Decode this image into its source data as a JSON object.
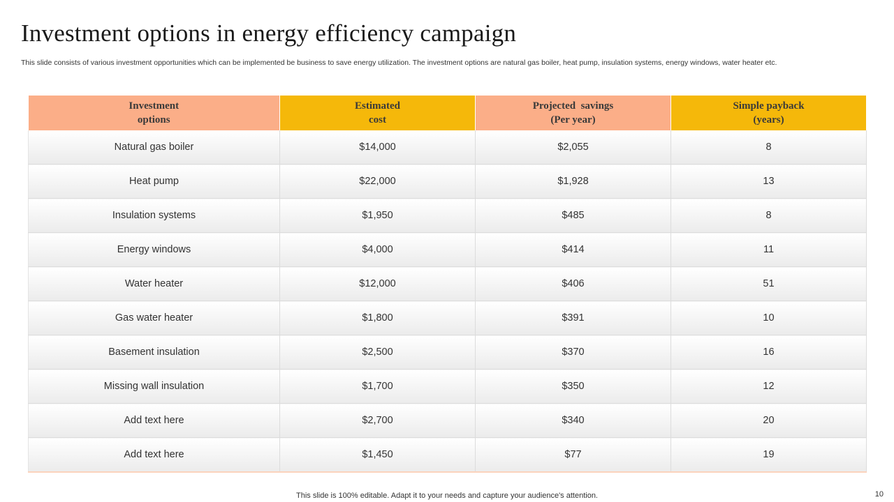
{
  "slide": {
    "title": "Investment options in energy efficiency campaign",
    "subtitle": "This slide consists of various investment opportunities which can be implemented be business to save energy utilization. The investment options are natural gas boiler, heat pump, insulation systems, energy windows, water heater etc."
  },
  "table": {
    "headers": [
      {
        "line1": "Investment",
        "line2": "options"
      },
      {
        "line1": "Estimated",
        "line2": "cost"
      },
      {
        "line1": "Projected  savings",
        "line2": "(Per year)"
      },
      {
        "line1": "Simple payback",
        "line2": "(years)"
      }
    ],
    "rows": [
      [
        "Natural gas boiler",
        "$14,000",
        "$2,055",
        "8"
      ],
      [
        "Heat pump",
        "$22,000",
        "$1,928",
        "13"
      ],
      [
        "Insulation systems",
        "$1,950",
        "$485",
        "8"
      ],
      [
        "Energy windows",
        "$4,000",
        "$414",
        "11"
      ],
      [
        "Water heater",
        "$12,000",
        "$406",
        "51"
      ],
      [
        "Gas water heater",
        "$1,800",
        "$391",
        "10"
      ],
      [
        "Basement insulation",
        "$2,500",
        "$370",
        "16"
      ],
      [
        "Missing wall insulation",
        "$1,700",
        "$350",
        "12"
      ],
      [
        "Add text here",
        "$2,700",
        "$340",
        "20"
      ],
      [
        "Add text here",
        "$1,450",
        "$77",
        "19"
      ]
    ]
  },
  "footer": {
    "note": "This slide is 100% editable. Adapt it to your needs and capture your audience's attention.",
    "page_number": "10"
  },
  "colors": {
    "header_salmon": "#fbae88",
    "header_gold": "#f5b80a"
  }
}
